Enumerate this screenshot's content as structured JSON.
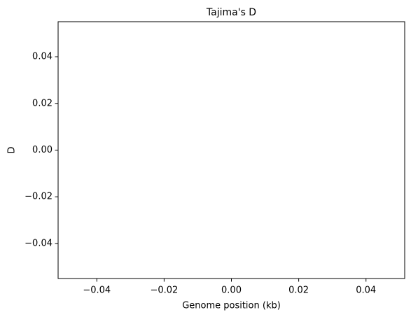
{
  "chart_data": {
    "type": "line",
    "title": "Tajima's D",
    "x_label": "Genome position (kb)",
    "y_label": "D",
    "x": [],
    "series": [],
    "xlim": [
      -0.0515,
      0.0515
    ],
    "xticks": [
      {
        "value": -0.04,
        "label": "−0.04"
      },
      {
        "value": -0.02,
        "label": "−0.02"
      },
      {
        "value": 0,
        "label": "0.00"
      },
      0.02,
      0.04
    ],
    "ylim": [
      -0.055,
      0.055
    ],
    "yticks": [
      {
        "value": -0.04,
        "label": "−0.04"
      },
      {
        "value": -0.02,
        "label": "−0.02"
      },
      {
        "value": 0,
        "label": "0.00"
      },
      0.02,
      0.04
    ],
    "grid": false
  }
}
